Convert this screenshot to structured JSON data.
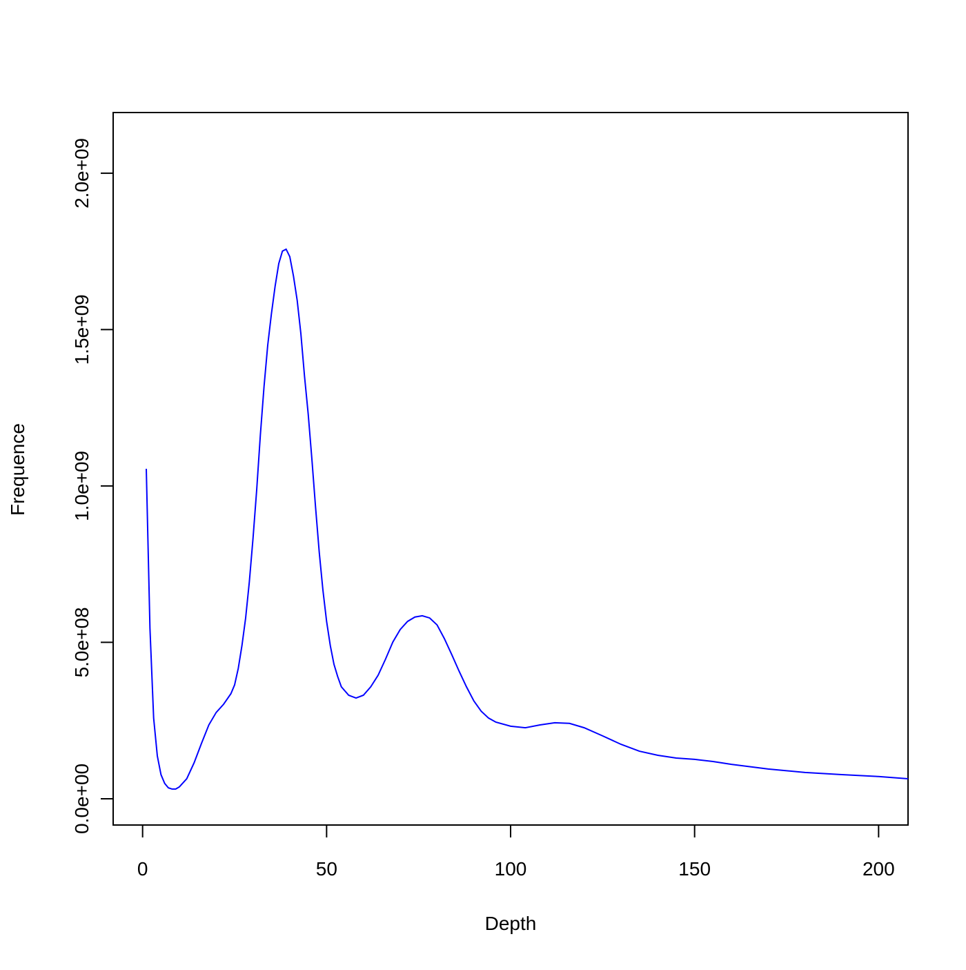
{
  "chart_data": {
    "type": "line",
    "x_label": "Depth",
    "y_label": "Frequence",
    "xlim": [
      -8,
      208
    ],
    "ylim": [
      -84000000,
      2194000000
    ],
    "xticks": [
      0,
      50,
      100,
      150,
      200
    ],
    "yticks": [
      {
        "value": 0,
        "label": "0.0e+00"
      },
      {
        "value": 500000000,
        "label": "5.0e+08"
      },
      {
        "value": 1000000000,
        "label": "1.0e+09"
      },
      {
        "value": 1500000000,
        "label": "1.5e+09"
      },
      {
        "value": 2000000000,
        "label": "2.0e+09"
      }
    ],
    "x": [
      1,
      2,
      3,
      4,
      5,
      6,
      7,
      8,
      9,
      10,
      12,
      14,
      16,
      18,
      20,
      22,
      24,
      25,
      26,
      27,
      28,
      29,
      30,
      31,
      32,
      33,
      34,
      35,
      36,
      37,
      38,
      39,
      40,
      41,
      42,
      43,
      44,
      45,
      46,
      47,
      48,
      49,
      50,
      51,
      52,
      53,
      54,
      56,
      58,
      60,
      62,
      64,
      66,
      68,
      70,
      72,
      74,
      76,
      78,
      80,
      82,
      84,
      86,
      88,
      90,
      92,
      94,
      96,
      100,
      104,
      108,
      112,
      116,
      120,
      125,
      130,
      135,
      140,
      145,
      150,
      155,
      160,
      170,
      180,
      190,
      200,
      208
    ],
    "series": [
      {
        "color": "#0000ff",
        "values": [
          1055000000,
          545000000,
          258000000,
          137000000,
          77000000,
          49000000,
          35000000,
          31000000,
          31000000,
          38000000,
          64000000,
          115000000,
          177000000,
          236000000,
          276000000,
          302000000,
          336000000,
          364000000,
          417000000,
          490000000,
          578000000,
          693000000,
          832000000,
          987000000,
          1163000000,
          1318000000,
          1450000000,
          1550000000,
          1638000000,
          1711000000,
          1751000000,
          1757000000,
          1733000000,
          1671000000,
          1594000000,
          1488000000,
          1351000000,
          1230000000,
          1086000000,
          932000000,
          788000000,
          667000000,
          567000000,
          490000000,
          430000000,
          391000000,
          358000000,
          331000000,
          322000000,
          331000000,
          358000000,
          395000000,
          446000000,
          501000000,
          541000000,
          567000000,
          581000000,
          585000000,
          578000000,
          556000000,
          512000000,
          461000000,
          408000000,
          358000000,
          313000000,
          280000000,
          258000000,
          245000000,
          232000000,
          227000000,
          236000000,
          243000000,
          241000000,
          227000000,
          201000000,
          174000000,
          152000000,
          139000000,
          130000000,
          126000000,
          119000000,
          110000000,
          95000000,
          84000000,
          77000000,
          71000000,
          64000000
        ]
      }
    ]
  }
}
